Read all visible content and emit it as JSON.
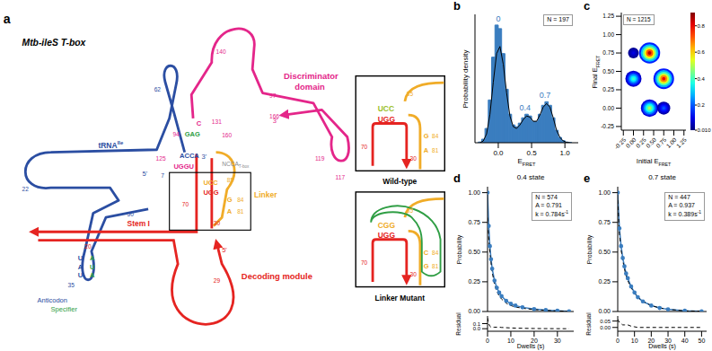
{
  "diagram": {
    "panel": "a",
    "title": "Mtb-ileS T-box",
    "domain_labels": {
      "discriminator": "Discriminator domain",
      "trna": {
        "text": "tRNA",
        "sup": "Ile"
      },
      "linker": "Linker",
      "stem": "Stem I",
      "decoding": "Decoding module",
      "anticodon": "Anticodon",
      "specifier": "Specifier"
    },
    "tbox_end": {
      "text": "NCCA",
      "sub": "T-box"
    },
    "position_labels": [
      "140",
      "97",
      "166",
      "131",
      "94",
      "160",
      "119",
      "117",
      "125",
      "62",
      "7",
      "22",
      "50",
      "85",
      "70",
      "84",
      "81",
      "30",
      "35",
      "20",
      "29"
    ],
    "ends": [
      "3'",
      "3'",
      "5'",
      "5'"
    ],
    "nucleotides": [
      "C",
      "GAG",
      "UGGU",
      "ACCA",
      "UCC",
      "UGG",
      "G",
      "A"
    ],
    "anticodon": [
      "U",
      "A",
      "U"
    ],
    "specifier": [
      "A",
      "U",
      "A"
    ],
    "insets": [
      {
        "title": "Wild-type",
        "top": "UCC",
        "bottom": "UGG",
        "bulge": [
          "G",
          "A"
        ],
        "position_labels": [
          "85",
          "70",
          "84",
          "81",
          "30"
        ]
      },
      {
        "title": "Linker Mutant",
        "top": "CGG",
        "bottom": "UGG",
        "bulge": [
          "C",
          "G"
        ],
        "position_labels": [
          "85",
          "70",
          "84",
          "81",
          "30"
        ]
      }
    ]
  },
  "chart_data": [
    {
      "panel": "b",
      "type": "histogram",
      "bins": [
        -0.3,
        -0.25,
        -0.2,
        -0.15,
        -0.1,
        -0.05,
        0,
        0.05,
        0.1,
        0.15,
        0.2,
        0.25,
        0.3,
        0.35,
        0.4,
        0.45,
        0.5,
        0.55,
        0.6,
        0.65,
        0.7,
        0.75,
        0.8,
        0.85,
        0.9,
        0.95,
        1,
        1.05,
        1.1
      ],
      "counts": [
        0.02,
        0.1,
        0.4,
        1.2,
        2.4,
        3.3,
        3.2,
        2.5,
        1.5,
        0.8,
        0.5,
        0.45,
        0.55,
        0.7,
        0.8,
        0.75,
        0.6,
        0.6,
        0.8,
        1.05,
        1.15,
        1.05,
        0.7,
        0.35,
        0.15,
        0.06,
        0.02,
        0.01
      ],
      "color": "#3a7dbf",
      "x": [
        -0.275,
        -0.225,
        -0.175,
        -0.125,
        -0.075,
        -0.025,
        0.025,
        0.075,
        0.125,
        0.175,
        0.225,
        0.275,
        0.325,
        0.375,
        0.425,
        0.475,
        0.525,
        0.575,
        0.625,
        0.675,
        0.725,
        0.775,
        0.825,
        0.875,
        0.925,
        0.975,
        1.025,
        1.075
      ],
      "series": [
        {
          "type": "line",
          "color": "#000000",
          "values": [
            0,
            0.05,
            0.25,
            0.8,
            1.7,
            2.5,
            2.7,
            2.2,
            1.4,
            0.75,
            0.45,
            0.4,
            0.5,
            0.65,
            0.75,
            0.72,
            0.6,
            0.6,
            0.78,
            1,
            1.1,
            1,
            0.7,
            0.35,
            0.15,
            0.05,
            0.01,
            0
          ]
        }
      ],
      "peak_labels": [
        0,
        0.4,
        0.7
      ],
      "xlim": [
        -0.35,
        1.2
      ],
      "xticks": [
        {
          "value": 0,
          "label": "0.0"
        },
        0.5,
        {
          "value": 1,
          "label": "1.0"
        }
      ],
      "ylim": [
        0,
        3.6
      ],
      "yticks": [],
      "tick_labels": "x",
      "x_label": {
        "text": "E",
        "sub": "FRET"
      },
      "y_label": "Probability density",
      "annotations": [
        "N = 197"
      ]
    },
    {
      "panel": "c",
      "type": "scatter",
      "x": [
        0,
        0,
        0.4,
        0.4,
        0.75,
        0.75
      ],
      "y": [
        0.75,
        0.4,
        0.75,
        0,
        0.4,
        0
      ],
      "density": [
        0.1,
        0.4,
        0.85,
        0.5,
        0.8,
        0.2
      ],
      "xlim": [
        -0.3,
        1.3
      ],
      "ylim": [
        -0.3,
        1.3
      ],
      "xticks": [
        -0.25,
        {
          "value": 0,
          "label": "0.00"
        },
        0.25,
        {
          "value": 0.5,
          "label": "0.50"
        },
        0.75,
        {
          "value": 1,
          "label": "1.00"
        },
        1.25
      ],
      "yticks": [
        -0.25,
        {
          "value": 0,
          "label": "0.00"
        },
        0.25,
        {
          "value": 0.5,
          "label": "0.50"
        },
        0.75,
        {
          "value": 1,
          "label": "1.00"
        },
        1.25
      ],
      "x_label": {
        "text": "Initial E",
        "sub": "FRET"
      },
      "y_label": {
        "text": "Final E",
        "sub": "FRET"
      },
      "annotations": [
        "N = 1215"
      ],
      "colorbar": {
        "range": [
          0.01,
          0.9
        ],
        "ticks": [
          {
            "value": 0.01,
            "label": "0.010"
          },
          0.2,
          0.4,
          0.6,
          0.8
        ]
      }
    },
    {
      "panel": "d",
      "type": "line",
      "title": "0.4 state",
      "x": [
        0,
        0.5,
        1,
        1.5,
        2,
        3,
        4,
        5,
        6,
        8,
        10,
        12,
        15,
        20,
        25,
        30,
        35
      ],
      "series": [
        {
          "color": "#3a7dbf",
          "marker": "circle",
          "values": [
            1,
            0.72,
            0.55,
            0.44,
            0.36,
            0.26,
            0.2,
            0.16,
            0.13,
            0.09,
            0.065,
            0.05,
            0.035,
            0.02,
            0.012,
            0.006,
            0.002
          ]
        },
        {
          "color": "#000000",
          "line_style": "dashed",
          "values": [
            0.79,
            0.62,
            0.5,
            0.41,
            0.33,
            0.23,
            0.17,
            0.13,
            0.105,
            0.07,
            0.05,
            0.038,
            0.027,
            0.016,
            0.01,
            0.005,
            0.002
          ]
        }
      ],
      "xlim": [
        0,
        37
      ],
      "xticks": [
        0,
        10,
        20,
        30
      ],
      "ylim": [
        0,
        1.05
      ],
      "yticks": [
        {
          "value": 0,
          "label": "0.00"
        },
        0.25,
        {
          "value": 0.5,
          "label": "0.50"
        },
        0.75,
        {
          "value": 1,
          "label": "1.00"
        }
      ],
      "x_label": "Dwells (s)",
      "y_label": "Probability",
      "annotations": [
        "N = 574",
        "A = 0.791",
        {
          "text": "k = 0.784s",
          "sup": "-1"
        }
      ],
      "residual": {
        "y_label": "Residual",
        "color": "#000000",
        "line_style": "dashed",
        "values": [
          0.21,
          0.1,
          0.05,
          0.03,
          0.03,
          0.03,
          0.03,
          0.03,
          0.025,
          0.02,
          0.015,
          0.012,
          0.008,
          0.004,
          0.002,
          0.001,
          0
        ],
        "ylim": [
          -0.05,
          0.25
        ],
        "yticks": [
          {
            "value": 0,
            "label": "0.0"
          },
          0.1
        ]
      }
    },
    {
      "panel": "e",
      "type": "line",
      "title": "0.7 state",
      "x": [
        0,
        1,
        2,
        3,
        4,
        5,
        6,
        8,
        10,
        12,
        15,
        20,
        25,
        30,
        40,
        50
      ],
      "series": [
        {
          "color": "#3a7dbf",
          "marker": "circle",
          "values": [
            1,
            0.7,
            0.55,
            0.45,
            0.38,
            0.32,
            0.28,
            0.21,
            0.16,
            0.12,
            0.085,
            0.05,
            0.03,
            0.018,
            0.006,
            0.002
          ]
        },
        {
          "color": "#000000",
          "line_style": "dashed",
          "values": [
            0.937,
            0.66,
            0.52,
            0.43,
            0.36,
            0.3,
            0.26,
            0.2,
            0.155,
            0.12,
            0.085,
            0.05,
            0.03,
            0.018,
            0.006,
            0.002
          ]
        }
      ],
      "xlim": [
        0,
        53
      ],
      "xticks": [
        0,
        10,
        20,
        30,
        40,
        50
      ],
      "ylim": [
        0,
        1.05
      ],
      "yticks": [
        {
          "value": 0,
          "label": "0.00"
        },
        0.25,
        {
          "value": 0.5,
          "label": "0.50"
        },
        0.75,
        {
          "value": 1,
          "label": "1.00"
        }
      ],
      "x_label": "Dwells (s)",
      "y_label": "Probability",
      "annotations": [
        "N = 447",
        "A = 0.937",
        {
          "text": "k = 0.389s",
          "sup": "-1"
        }
      ],
      "residual": {
        "y_label": "Residual",
        "color": "#000000",
        "line_style": "dashed",
        "values": [
          0.063,
          0.04,
          0.03,
          0.02,
          0.02,
          0.02,
          0.02,
          0.01,
          0.005,
          0,
          0,
          0,
          0,
          0,
          0,
          0
        ],
        "ylim": [
          -0.03,
          0.09
        ],
        "yticks": [
          {
            "value": 0,
            "label": "0.00"
          },
          {
            "value": 0.05,
            "label": "0.05"
          }
        ]
      }
    }
  ]
}
